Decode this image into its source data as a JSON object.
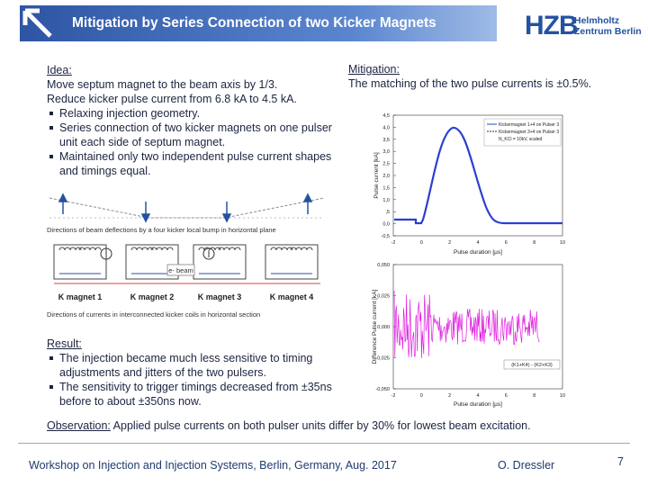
{
  "header": {
    "title": "Mitigation by Series Connection of two Kicker Magnets",
    "logo_mark": "HZB",
    "logo_line1": "Helmholtz",
    "logo_line2": "Zentrum Berlin"
  },
  "idea": {
    "heading": "Idea:",
    "lines": [
      "Move septum magnet to the beam axis by 1/3.",
      "Reduce kicker pulse current from 6.8 kA to 4.5 kA."
    ],
    "bullets": [
      "Relaxing injection geometry.",
      "Series connection of two kicker magnets on one pulser unit each side of septum magnet.",
      "Maintained only two independent pulse current shapes and timings equal."
    ]
  },
  "diagram": {
    "caption_top": "Directions of beam deflections by a four kicker local bump in horizontal plane",
    "beam_label": "e- beam",
    "magnets": [
      "K magnet 1",
      "K magnet 2",
      "K magnet 3",
      "K magnet 4"
    ],
    "caption_bottom": "Directions of currents in interconnected kicker coils in horizontal section"
  },
  "mitigation": {
    "heading": "Mitigation:",
    "text": "The matching of the two pulse currents is ±0.5%."
  },
  "plot_pulse": {
    "y_label": "Pulse current [kA]",
    "x_label": "Pulse duration [µs]",
    "y_ticks": [
      "4,5",
      "4,0",
      "3,5",
      "3,0",
      "2,5",
      "2,0",
      "1,5",
      "1,0",
      ",5",
      "0,0",
      "-0,5"
    ],
    "x_ticks": [
      "-2",
      "0",
      "2",
      "4",
      "6",
      "8",
      "10"
    ],
    "legend": [
      "Kickermagnet 1+4 on Pulser 3",
      "Kickermagnet 3+4 on Pulser 3",
      "N_KCl = 10kV, scaled"
    ]
  },
  "plot_diff": {
    "y_label": "Difference  Pulse current [kA]",
    "x_label": "Pulse duration [µs]",
    "y_ticks": [
      "0,050",
      "0,025",
      "0,000",
      "-0,025",
      "-0,050"
    ],
    "x_ticks": [
      "-2",
      "0",
      "2",
      "4",
      "6",
      "8",
      "10"
    ],
    "legend": [
      "(K1+K4) - (K2+K3)"
    ]
  },
  "result": {
    "heading": "Result:",
    "bullets": [
      "The injection became much less sensitive to timing adjustments and jitters of the two pulsers.",
      "The sensitivity to trigger timings decreased from ±35ns before to about ±350ns now."
    ]
  },
  "observation": {
    "heading": "Observation:",
    "text": "Applied pulse currents on both pulser units differ by 30% for lowest beam excitation."
  },
  "footer": {
    "event": "Workshop on Injection and Injection Systems, Berlin, Germany, Aug. 2017",
    "author": "O. Dressler",
    "page": "7"
  }
}
